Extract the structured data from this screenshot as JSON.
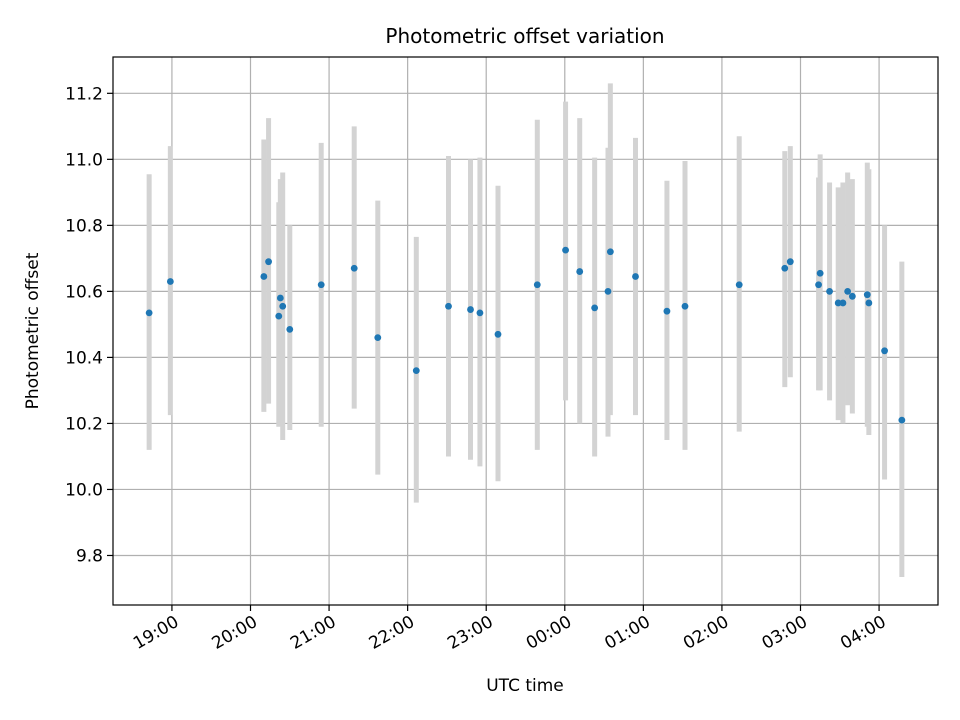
{
  "chart_data": {
    "type": "scatter",
    "title": "Photometric offset variation",
    "xlabel": "UTC time",
    "ylabel": "Photometric offset",
    "x_unit": "hours since 19:00 UTC",
    "xlim": [
      -0.75,
      9.75
    ],
    "ylim": [
      9.65,
      11.31
    ],
    "grid": true,
    "x_ticks": [
      {
        "value": 0,
        "label": "19:00"
      },
      {
        "value": 1,
        "label": "20:00"
      },
      {
        "value": 2,
        "label": "21:00"
      },
      {
        "value": 3,
        "label": "22:00"
      },
      {
        "value": 4,
        "label": "23:00"
      },
      {
        "value": 5,
        "label": "00:00"
      },
      {
        "value": 6,
        "label": "01:00"
      },
      {
        "value": 7,
        "label": "02:00"
      },
      {
        "value": 8,
        "label": "03:00"
      },
      {
        "value": 9,
        "label": "04:00"
      }
    ],
    "y_ticks": [
      {
        "value": 9.8,
        "label": "9.8"
      },
      {
        "value": 10.0,
        "label": "10.0"
      },
      {
        "value": 10.2,
        "label": "10.2"
      },
      {
        "value": 10.4,
        "label": "10.4"
      },
      {
        "value": 10.6,
        "label": "10.6"
      },
      {
        "value": 10.8,
        "label": "10.8"
      },
      {
        "value": 11.0,
        "label": "11.0"
      },
      {
        "value": 11.2,
        "label": "11.2"
      }
    ],
    "colors": {
      "point": "#1f77b4",
      "errorbar": "#d3d3d3",
      "grid": "#b0b0b0"
    },
    "points": [
      {
        "x": -0.29,
        "y": 10.535,
        "yerr_low": 10.12,
        "yerr_high": 10.955
      },
      {
        "x": -0.02,
        "y": 10.63,
        "yerr_low": 10.225,
        "yerr_high": 11.04
      },
      {
        "x": 1.17,
        "y": 10.645,
        "yerr_low": 10.235,
        "yerr_high": 11.06
      },
      {
        "x": 1.23,
        "y": 10.69,
        "yerr_low": 10.26,
        "yerr_high": 11.125
      },
      {
        "x": 1.36,
        "y": 10.525,
        "yerr_low": 10.19,
        "yerr_high": 10.87
      },
      {
        "x": 1.38,
        "y": 10.58,
        "yerr_low": 10.2,
        "yerr_high": 10.94
      },
      {
        "x": 1.41,
        "y": 10.555,
        "yerr_low": 10.15,
        "yerr_high": 10.96
      },
      {
        "x": 1.5,
        "y": 10.485,
        "yerr_low": 10.18,
        "yerr_high": 10.8
      },
      {
        "x": 1.9,
        "y": 10.62,
        "yerr_low": 10.19,
        "yerr_high": 11.05
      },
      {
        "x": 2.32,
        "y": 10.67,
        "yerr_low": 10.245,
        "yerr_high": 11.1
      },
      {
        "x": 2.62,
        "y": 10.46,
        "yerr_low": 10.045,
        "yerr_high": 10.875
      },
      {
        "x": 3.11,
        "y": 10.36,
        "yerr_low": 9.96,
        "yerr_high": 10.765
      },
      {
        "x": 3.52,
        "y": 10.555,
        "yerr_low": 10.1,
        "yerr_high": 11.01
      },
      {
        "x": 3.8,
        "y": 10.545,
        "yerr_low": 10.09,
        "yerr_high": 11.0
      },
      {
        "x": 3.92,
        "y": 10.535,
        "yerr_low": 10.07,
        "yerr_high": 11.005
      },
      {
        "x": 4.15,
        "y": 10.47,
        "yerr_low": 10.025,
        "yerr_high": 10.92
      },
      {
        "x": 4.65,
        "y": 10.62,
        "yerr_low": 10.12,
        "yerr_high": 11.12
      },
      {
        "x": 5.01,
        "y": 10.725,
        "yerr_low": 10.27,
        "yerr_high": 11.175
      },
      {
        "x": 5.19,
        "y": 10.66,
        "yerr_low": 10.2,
        "yerr_high": 11.125
      },
      {
        "x": 5.38,
        "y": 10.55,
        "yerr_low": 10.1,
        "yerr_high": 11.005
      },
      {
        "x": 5.55,
        "y": 10.6,
        "yerr_low": 10.16,
        "yerr_high": 11.035
      },
      {
        "x": 5.58,
        "y": 10.72,
        "yerr_low": 10.225,
        "yerr_high": 11.23
      },
      {
        "x": 5.9,
        "y": 10.645,
        "yerr_low": 10.225,
        "yerr_high": 11.065
      },
      {
        "x": 6.3,
        "y": 10.54,
        "yerr_low": 10.15,
        "yerr_high": 10.935
      },
      {
        "x": 6.53,
        "y": 10.555,
        "yerr_low": 10.12,
        "yerr_high": 10.995
      },
      {
        "x": 7.22,
        "y": 10.62,
        "yerr_low": 10.175,
        "yerr_high": 11.07
      },
      {
        "x": 7.8,
        "y": 10.67,
        "yerr_low": 10.31,
        "yerr_high": 11.025
      },
      {
        "x": 7.87,
        "y": 10.69,
        "yerr_low": 10.34,
        "yerr_high": 11.04
      },
      {
        "x": 8.23,
        "y": 10.62,
        "yerr_low": 10.3,
        "yerr_high": 10.945
      },
      {
        "x": 8.25,
        "y": 10.655,
        "yerr_low": 10.3,
        "yerr_high": 11.015
      },
      {
        "x": 8.37,
        "y": 10.6,
        "yerr_low": 10.27,
        "yerr_high": 10.93
      },
      {
        "x": 8.48,
        "y": 10.565,
        "yerr_low": 10.21,
        "yerr_high": 10.915
      },
      {
        "x": 8.54,
        "y": 10.565,
        "yerr_low": 10.2,
        "yerr_high": 10.93
      },
      {
        "x": 8.6,
        "y": 10.6,
        "yerr_low": 10.255,
        "yerr_high": 10.96
      },
      {
        "x": 8.66,
        "y": 10.585,
        "yerr_low": 10.23,
        "yerr_high": 10.94
      },
      {
        "x": 8.85,
        "y": 10.59,
        "yerr_low": 10.19,
        "yerr_high": 10.99
      },
      {
        "x": 8.87,
        "y": 10.565,
        "yerr_low": 10.165,
        "yerr_high": 10.97
      },
      {
        "x": 9.07,
        "y": 10.42,
        "yerr_low": 10.03,
        "yerr_high": 10.8
      },
      {
        "x": 9.29,
        "y": 10.21,
        "yerr_low": 9.735,
        "yerr_high": 10.69
      }
    ]
  }
}
